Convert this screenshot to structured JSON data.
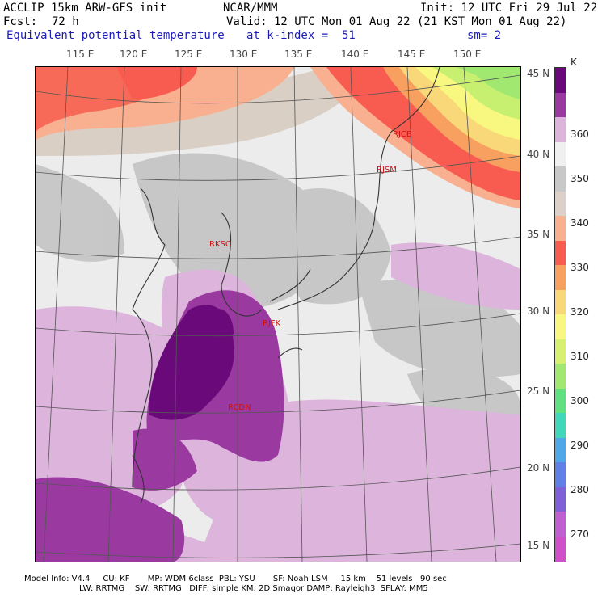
{
  "header": {
    "model": "ACCLIP 15km ARW-GFS init",
    "org": "NCAR/MMM",
    "init": "Init: 12 UTC Fri 29 Jul 22",
    "fcst_label": "Fcst:",
    "fcst_value": "72 h",
    "valid": "Valid: 12 UTC Mon 01 Aug 22 (21 KST Mon 01 Aug 22)",
    "field": "Equivalent potential temperature",
    "level": "at k-index =  51",
    "smooth": "sm= 2"
  },
  "map": {
    "lon_labels": [
      "115 E",
      "120 E",
      "125 E",
      "130 E",
      "135 E",
      "140 E",
      "145 E",
      "150 E"
    ],
    "lat_labels": [
      "45 N",
      "40 N",
      "35 N",
      "30 N",
      "25 N",
      "20 N",
      "15 N"
    ],
    "stations": [
      {
        "id": "RJCB"
      },
      {
        "id": "RJSM"
      },
      {
        "id": "RKSO"
      },
      {
        "id": "RJFK"
      },
      {
        "id": "RCDN"
      }
    ]
  },
  "colorbar": {
    "unit": "K",
    "labels": [
      "360",
      "350",
      "340",
      "330",
      "320",
      "310",
      "300",
      "290",
      "280",
      "270"
    ],
    "colors": [
      "#6a0a7a",
      "#9a3aa0",
      "#dcb4dc",
      "#f0f0f0",
      "#c8c8c8",
      "#dcd0c8",
      "#f8b090",
      "#f85c50",
      "#f8a060",
      "#f8d878",
      "#f8f880",
      "#d8f070",
      "#a0e870",
      "#60e080",
      "#40d8b8",
      "#50a8e8",
      "#6080e8",
      "#8060d8",
      "#c060d0",
      "#d050c8"
    ]
  },
  "footer": {
    "line1": "Model Info: V4.4     CU: KF       MP: WDM 6class  PBL: YSU       SF: Noah LSM     15 km    51 levels   90 sec",
    "line2": "LW: RRTMG    SW: RRTMG   DIFF: simple KM: 2D Smagor DAMP: Rayleigh3  SFLAY: MM5"
  }
}
